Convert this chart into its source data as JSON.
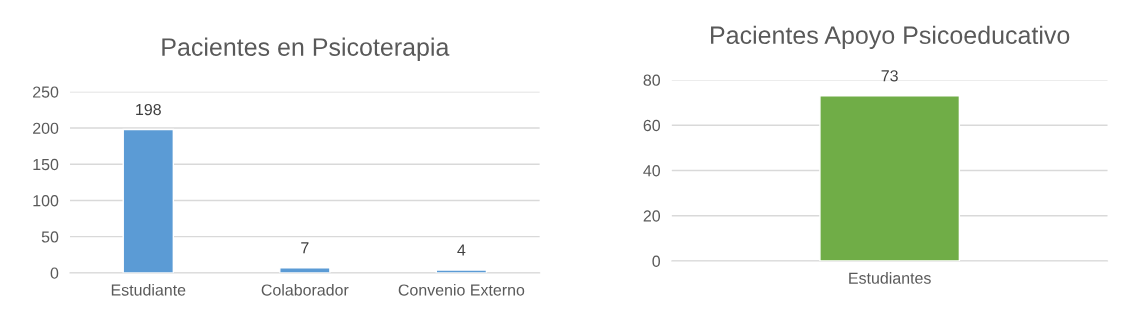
{
  "chart_data": [
    {
      "type": "bar",
      "title": "Pacientes en Psicoterapia",
      "categories": [
        "Estudiante",
        "Colaborador",
        "Convenio Externo"
      ],
      "values": [
        198,
        7,
        4
      ],
      "color": "#5b9bd5",
      "ylim": [
        0,
        250
      ],
      "yticks": [
        0,
        50,
        100,
        150,
        200,
        250
      ],
      "grid": "y",
      "data_labels": true
    },
    {
      "type": "bar",
      "title": "Pacientes Apoyo Psicoeducativo",
      "categories": [
        "Estudiantes"
      ],
      "values": [
        73
      ],
      "color": "#70ad47",
      "ylim": [
        0,
        80
      ],
      "yticks": [
        0,
        20,
        40,
        60,
        80
      ],
      "grid": "y",
      "data_labels": true
    }
  ]
}
